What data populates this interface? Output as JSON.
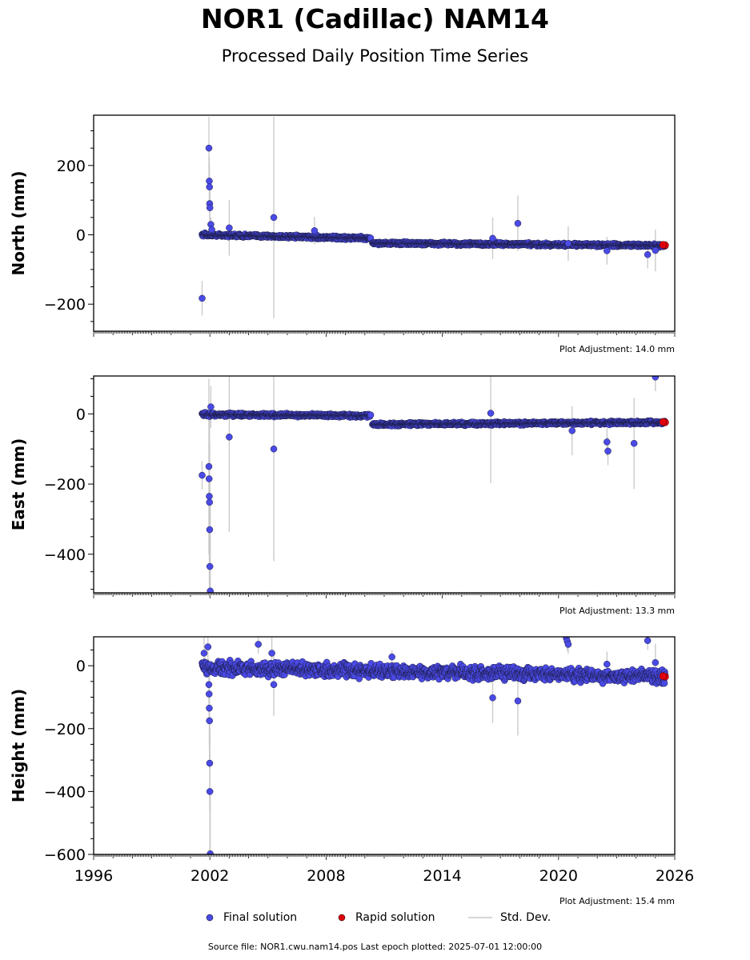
{
  "header": {
    "title": "NOR1 (Cadillac) NAM14",
    "subtitle": "Processed Daily Position Time Series"
  },
  "footer": {
    "source": "Source file: NOR1.cwu.nam14.pos  Last epoch plotted: 2025-07-01 12:00:00"
  },
  "legend": {
    "final": "Final solution",
    "rapid": "Rapid solution",
    "stddev": "Std. Dev."
  },
  "colors": {
    "final": "#4a4ae6",
    "rapid": "#e0000b",
    "stddev": "#c8c8c8"
  },
  "chart_data": [
    {
      "type": "scatter",
      "ylabel": "North (mm)",
      "xlim": [
        1996,
        2026
      ],
      "ylim": [
        -278,
        345
      ],
      "yticks": [
        -200,
        0,
        200
      ],
      "adjustment": "Plot Adjustment: 14.0 mm",
      "segments": [
        {
          "x0": 2001.6,
          "x1": 2010.3,
          "y0": 0,
          "y1": -10,
          "noise": 3
        },
        {
          "x0": 2010.4,
          "x1": 2025.5,
          "y0": -24,
          "y1": -31,
          "noise": 3
        }
      ],
      "outliers": [
        {
          "x": 2001.6,
          "y": -183,
          "err": 50
        },
        {
          "x": 2001.95,
          "y": 250,
          "err": 90
        },
        {
          "x": 2001.97,
          "y": 155,
          "err": 70
        },
        {
          "x": 2001.98,
          "y": 138,
          "err": 60
        },
        {
          "x": 2001.99,
          "y": 90,
          "err": 50
        },
        {
          "x": 2002.0,
          "y": 78,
          "err": 50
        },
        {
          "x": 2002.05,
          "y": 30,
          "err": 20
        },
        {
          "x": 2002.1,
          "y": 15,
          "err": 15
        },
        {
          "x": 2003.0,
          "y": 20,
          "err": 80
        },
        {
          "x": 2005.3,
          "y": 50,
          "err": 290
        },
        {
          "x": 2007.4,
          "y": 12,
          "err": 40
        },
        {
          "x": 2016.6,
          "y": -10,
          "err": 60
        },
        {
          "x": 2017.9,
          "y": 33,
          "err": 80
        },
        {
          "x": 2020.5,
          "y": -25,
          "err": 50
        },
        {
          "x": 2022.5,
          "y": -46,
          "err": 40
        },
        {
          "x": 2024.6,
          "y": -57,
          "err": 40
        },
        {
          "x": 2025.0,
          "y": -45,
          "err": 60
        }
      ],
      "rapid": [
        {
          "x": 2025.5,
          "y": -30
        },
        {
          "x": 2025.4,
          "y": -29
        }
      ]
    },
    {
      "type": "scatter",
      "ylabel": "East (mm)",
      "xlim": [
        1996,
        2026
      ],
      "ylim": [
        -510,
        108
      ],
      "yticks": [
        -400,
        -200,
        0
      ],
      "adjustment": "Plot Adjustment: 13.3 mm",
      "segments": [
        {
          "x0": 2001.6,
          "x1": 2010.3,
          "y0": -2,
          "y1": -5,
          "noise": 3
        },
        {
          "x0": 2010.4,
          "x1": 2025.5,
          "y0": -30,
          "y1": -24,
          "noise": 3
        }
      ],
      "outliers": [
        {
          "x": 2001.6,
          "y": -175,
          "err": 40
        },
        {
          "x": 2001.95,
          "y": -150,
          "err": 250
        },
        {
          "x": 2001.96,
          "y": -185,
          "err": 200
        },
        {
          "x": 2001.97,
          "y": -235,
          "err": 250
        },
        {
          "x": 2001.98,
          "y": -252,
          "err": 250
        },
        {
          "x": 2001.99,
          "y": -330,
          "err": 250
        },
        {
          "x": 2002.0,
          "y": -435,
          "err": 250
        },
        {
          "x": 2002.02,
          "y": -505,
          "err": 250
        },
        {
          "x": 2002.05,
          "y": 20,
          "err": 60
        },
        {
          "x": 2003.0,
          "y": -66,
          "err": 270
        },
        {
          "x": 2005.3,
          "y": -100,
          "err": 320
        },
        {
          "x": 2016.5,
          "y": 2,
          "err": 200
        },
        {
          "x": 2020.7,
          "y": -48,
          "err": 70
        },
        {
          "x": 2022.5,
          "y": -80,
          "err": 40
        },
        {
          "x": 2022.55,
          "y": -106,
          "err": 40
        },
        {
          "x": 2023.9,
          "y": -84,
          "err": 130
        },
        {
          "x": 2025.0,
          "y": 105,
          "err": 40
        }
      ],
      "rapid": [
        {
          "x": 2025.5,
          "y": -24
        },
        {
          "x": 2025.4,
          "y": -23
        }
      ]
    },
    {
      "type": "scatter",
      "ylabel": "Height (mm)",
      "xlabel": "",
      "xlim": [
        1996,
        2026
      ],
      "ylim": [
        -600,
        92
      ],
      "yticks": [
        -600,
        -400,
        -200,
        0
      ],
      "xticks": [
        1996,
        2002,
        2008,
        2014,
        2020,
        2026
      ],
      "adjustment": "Plot Adjustment: 15.4 mm",
      "segments": [
        {
          "x0": 2001.6,
          "x1": 2025.5,
          "y0": -5,
          "y1": -35,
          "noise": 14
        }
      ],
      "outliers": [
        {
          "x": 2001.7,
          "y": 40,
          "err": 60
        },
        {
          "x": 2001.9,
          "y": 60,
          "err": 60
        },
        {
          "x": 2001.95,
          "y": -60,
          "err": 80
        },
        {
          "x": 2001.96,
          "y": -90,
          "err": 90
        },
        {
          "x": 2001.97,
          "y": -135,
          "err": 120
        },
        {
          "x": 2001.98,
          "y": -175,
          "err": 150
        },
        {
          "x": 2001.99,
          "y": -310,
          "err": 150
        },
        {
          "x": 2002.0,
          "y": -400,
          "err": 200
        },
        {
          "x": 2002.02,
          "y": -598,
          "err": 200
        },
        {
          "x": 2004.5,
          "y": 68,
          "err": 30
        },
        {
          "x": 2005.2,
          "y": 40,
          "err": 50
        },
        {
          "x": 2005.3,
          "y": -60,
          "err": 100
        },
        {
          "x": 2011.4,
          "y": 28,
          "err": 20
        },
        {
          "x": 2016.6,
          "y": -102,
          "err": 80
        },
        {
          "x": 2017.9,
          "y": -112,
          "err": 110
        },
        {
          "x": 2020.4,
          "y": 88,
          "err": 30
        },
        {
          "x": 2020.45,
          "y": 78,
          "err": 30
        },
        {
          "x": 2020.5,
          "y": 68,
          "err": 30
        },
        {
          "x": 2022.5,
          "y": 5,
          "err": 40
        },
        {
          "x": 2024.6,
          "y": 80,
          "err": 30
        },
        {
          "x": 2025.0,
          "y": 10,
          "err": 60
        }
      ],
      "rapid": [
        {
          "x": 2025.5,
          "y": -35
        },
        {
          "x": 2025.4,
          "y": -33
        }
      ]
    }
  ]
}
